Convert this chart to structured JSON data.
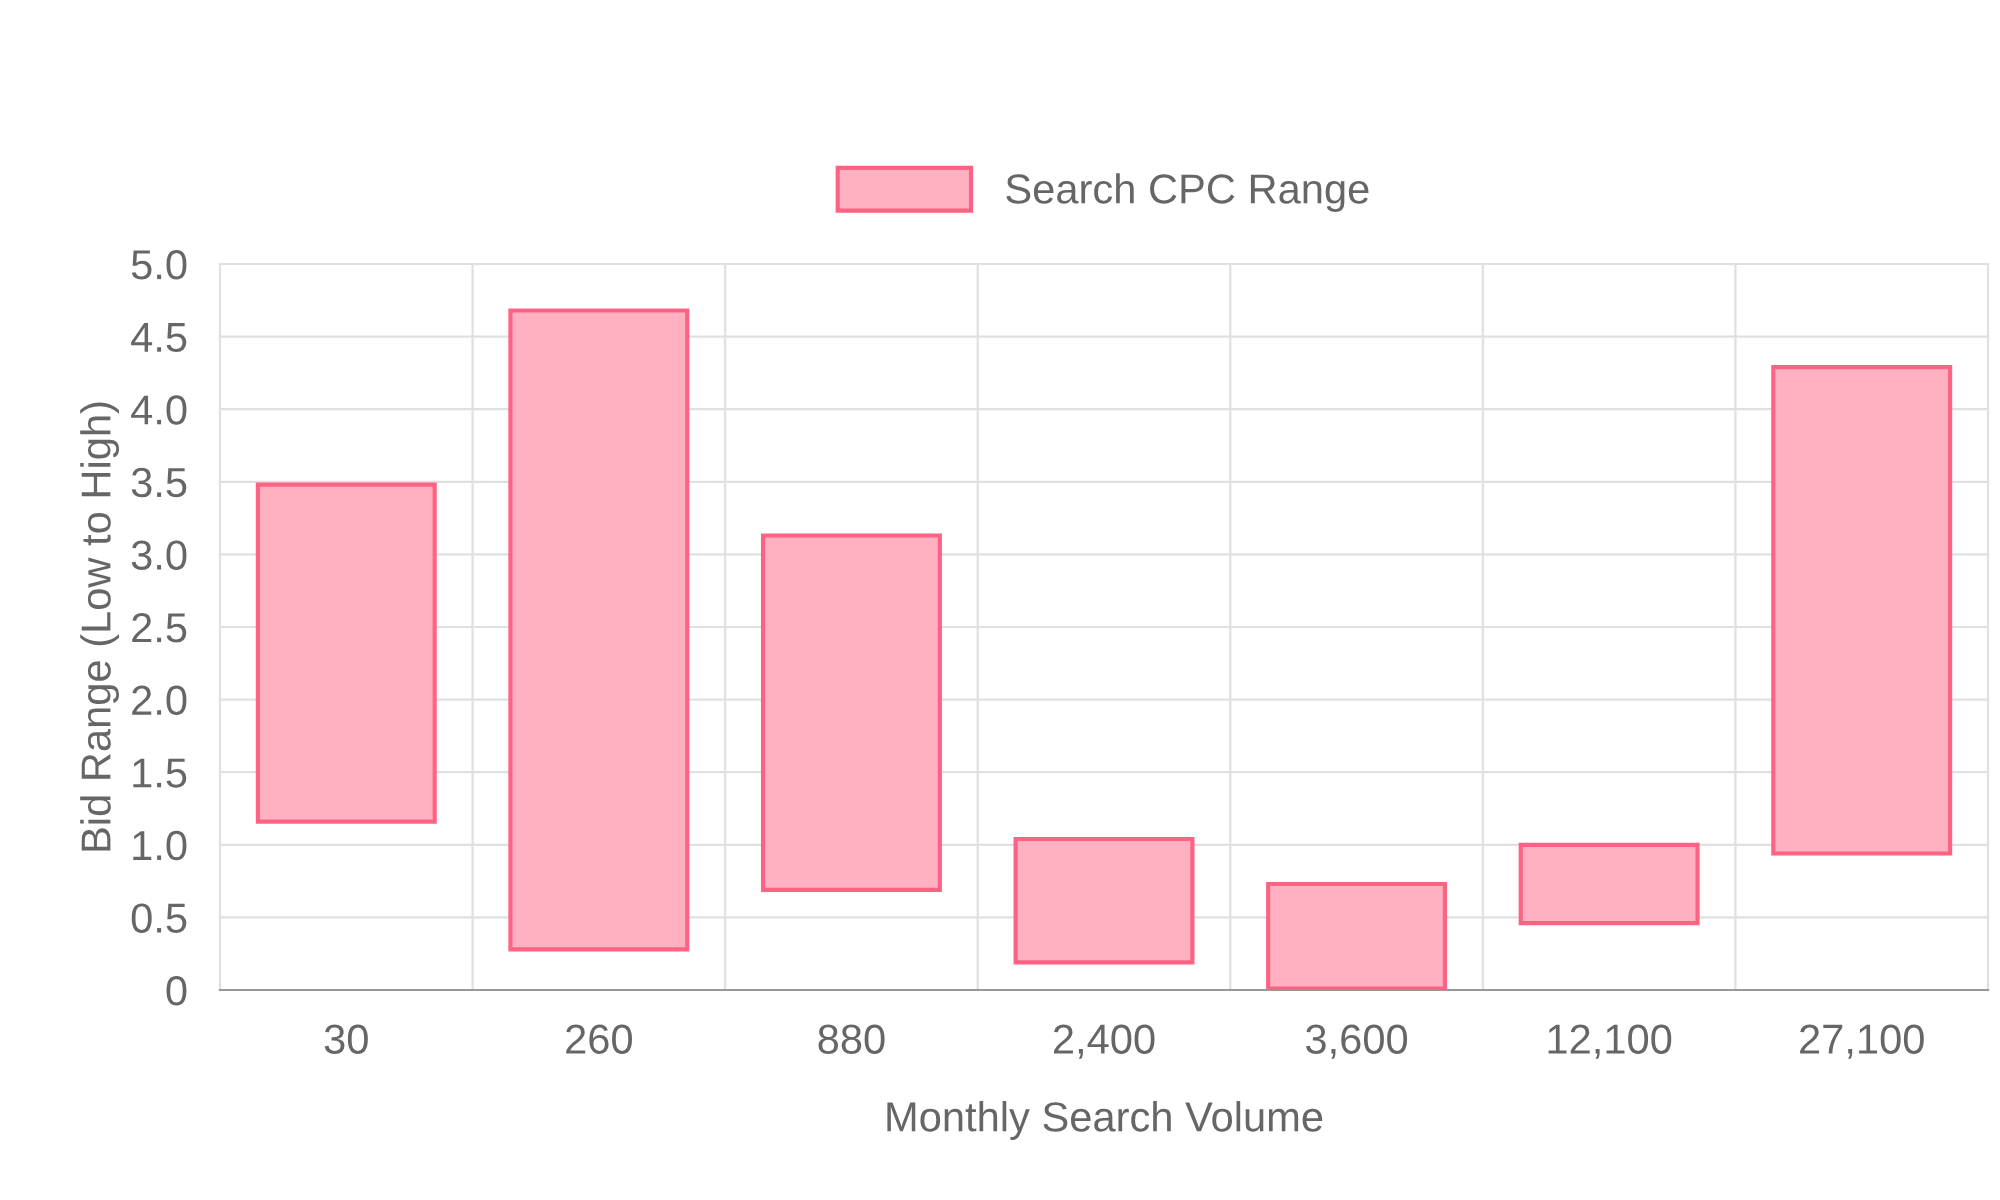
{
  "chart_data": {
    "type": "bar",
    "xlabel": "Monthly Search Volume",
    "ylabel": "Bid Range (Low to High)",
    "categories": [
      "30",
      "260",
      "880",
      "2,400",
      "3,600",
      "12,100",
      "27,100"
    ],
    "series": [
      {
        "name": "Search CPC Range",
        "color": "#ffb1c1",
        "values": [
          2.32,
          4.4,
          2.44,
          0.85,
          0.72,
          0.54,
          3.35
        ],
        "base": [
          1.16,
          0.28,
          0.69,
          0.19,
          0.01,
          0.46,
          0.94
        ]
      }
    ],
    "ylim": [
      0,
      5
    ],
    "yticks": [
      0,
      {
        "value": 0.5,
        "label": "0.5"
      },
      {
        "value": 1,
        "label": "1.0"
      },
      {
        "value": 1.5,
        "label": "1.5"
      },
      {
        "value": 2,
        "label": "2.0"
      },
      {
        "value": 2.5,
        "label": "2.5"
      },
      {
        "value": 3,
        "label": "3.0"
      },
      {
        "value": 3.5,
        "label": "3.5"
      },
      {
        "value": 4,
        "label": "4.0"
      },
      {
        "value": 4.5,
        "label": "4.5"
      },
      {
        "value": 5,
        "label": "5.0"
      }
    ],
    "grid": true,
    "legend": "top"
  }
}
